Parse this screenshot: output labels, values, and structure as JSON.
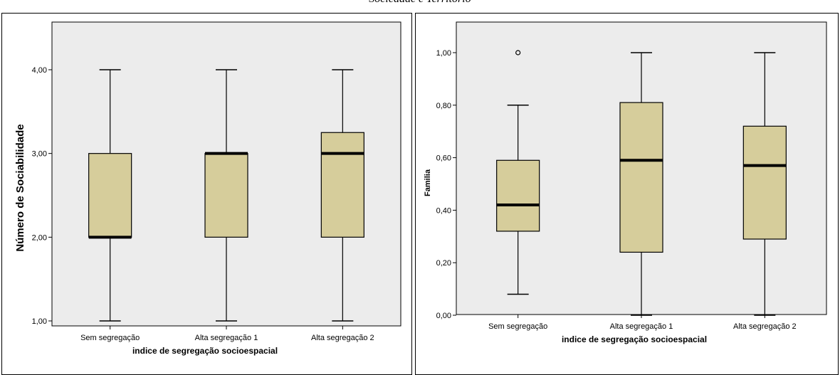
{
  "caption": "Sociedade e Território",
  "chart_data": [
    {
      "type": "boxplot",
      "ylabel": "Número de Sociabilidade",
      "xlabel": "indice de segregação socioespacial",
      "categories": [
        "Sem segregação",
        "Alta segregação 1",
        "Alta segregação 2"
      ],
      "yticks": [
        "1,00",
        "2,00",
        "3,00",
        "4,00"
      ],
      "ylim": [
        1.0,
        4.0
      ],
      "boxes": [
        {
          "min": 1.0,
          "q1": 2.0,
          "median": 2.0,
          "q3": 3.0,
          "max": 4.0,
          "outliers": []
        },
        {
          "min": 1.0,
          "q1": 2.0,
          "median": 3.0,
          "q3": 3.0,
          "max": 4.0,
          "outliers": []
        },
        {
          "min": 1.0,
          "q1": 2.0,
          "median": 3.0,
          "q3": 3.25,
          "max": 4.0,
          "outliers": []
        }
      ],
      "box_color": "#d6cd9b",
      "plot_background": "#ececec",
      "grid": false
    },
    {
      "type": "boxplot",
      "ylabel": "Familia",
      "xlabel": "indice de segregação socioespacial",
      "categories": [
        "Sem segregação",
        "Alta segregação 1",
        "Alta segregação 2"
      ],
      "yticks": [
        "0,00",
        "0,20",
        "0,40",
        "0,60",
        "0,80",
        "1,00"
      ],
      "ylim": [
        0.0,
        1.0
      ],
      "boxes": [
        {
          "min": 0.08,
          "q1": 0.32,
          "median": 0.42,
          "q3": 0.59,
          "max": 0.8,
          "outliers": [
            1.0
          ]
        },
        {
          "min": 0.0,
          "q1": 0.24,
          "median": 0.59,
          "q3": 0.81,
          "max": 1.0,
          "outliers": []
        },
        {
          "min": 0.0,
          "q1": 0.29,
          "median": 0.57,
          "q3": 0.72,
          "max": 1.0,
          "outliers": []
        }
      ],
      "box_color": "#d6cd9b",
      "plot_background": "#ececec",
      "grid": false
    }
  ]
}
